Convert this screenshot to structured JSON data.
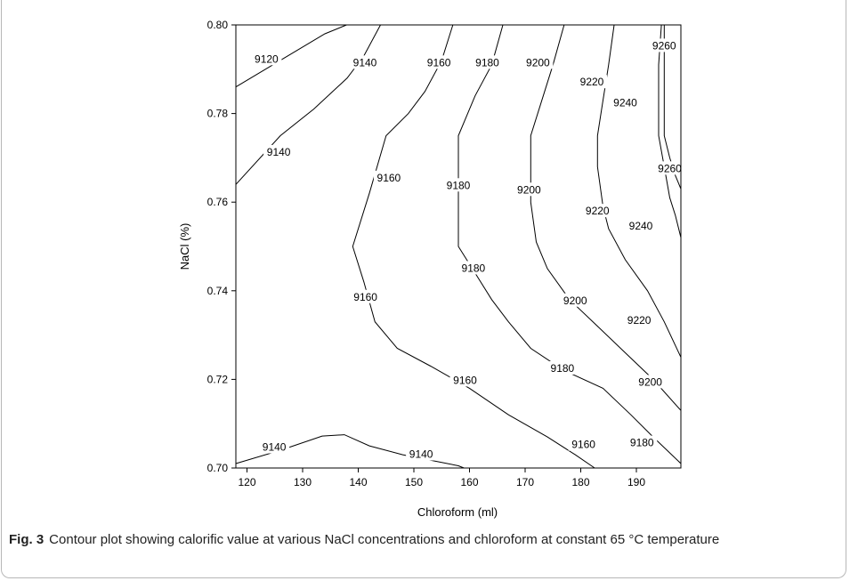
{
  "caption": {
    "label": "Fig. 3",
    "text": "Contour plot showing calorific value at various NaCl concentrations and chloroform at constant 65 °C temperature"
  },
  "chart_data": {
    "type": "contour",
    "xlabel": "Chloroform (ml)",
    "ylabel": "NaCl (%)",
    "xlim": [
      118,
      198
    ],
    "ylim": [
      0.7,
      0.8
    ],
    "x_ticks": [
      120,
      130,
      140,
      150,
      160,
      170,
      180,
      190
    ],
    "y_ticks": [
      0.7,
      0.72,
      0.74,
      0.76,
      0.78,
      0.8
    ],
    "y_tick_labels": [
      "0.70",
      "0.72",
      "0.74",
      "0.76",
      "0.78",
      "0.80"
    ],
    "contours": [
      {
        "level": 9120,
        "lines": [
          [
            [
              118,
              0.786
            ],
            [
              126,
              0.792
            ],
            [
              134,
              0.798
            ],
            [
              137.9,
              0.8
            ]
          ]
        ],
        "labels": [
          {
            "x": 123.5,
            "y": 0.7923,
            "text": "9120"
          }
        ]
      },
      {
        "level": 9140,
        "lines": [
          [
            [
              118,
              0.764
            ],
            [
              126,
              0.775
            ],
            [
              132,
              0.781
            ],
            [
              138,
              0.788
            ],
            [
              141,
              0.793
            ],
            [
              144,
              0.8
            ]
          ],
          [
            [
              118,
              0.701
            ],
            [
              126,
              0.704
            ],
            [
              133.5,
              0.7072
            ],
            [
              137.5,
              0.7075
            ],
            [
              142,
              0.705
            ],
            [
              148,
              0.703
            ],
            [
              154,
              0.7015
            ],
            [
              158,
              0.7005
            ],
            [
              159,
              0.7
            ]
          ]
        ],
        "labels": [
          {
            "x": 141.2,
            "y": 0.7915,
            "text": "9140"
          },
          {
            "x": 125.7,
            "y": 0.7713,
            "text": "9140"
          },
          {
            "x": 124.9,
            "y": 0.7047,
            "text": "9140"
          },
          {
            "x": 151.3,
            "y": 0.7031,
            "text": "9140"
          }
        ]
      },
      {
        "level": 9160,
        "lines": [
          [
            [
              157,
              0.8
            ],
            [
              155,
              0.792
            ],
            [
              152,
              0.785
            ],
            [
              149,
              0.78
            ],
            [
              145,
              0.775
            ],
            [
              142,
              0.762
            ],
            [
              139,
              0.75
            ],
            [
              141,
              0.742
            ],
            [
              143,
              0.733
            ],
            [
              147,
              0.727
            ],
            [
              153,
              0.723
            ],
            [
              160,
              0.718
            ],
            [
              167,
              0.712
            ],
            [
              174,
              0.707
            ],
            [
              179,
              0.703
            ],
            [
              182.5,
              0.7
            ]
          ]
        ],
        "labels": [
          {
            "x": 154.5,
            "y": 0.7915,
            "text": "9160"
          },
          {
            "x": 145.5,
            "y": 0.7655,
            "text": "9160"
          },
          {
            "x": 141.3,
            "y": 0.7386,
            "text": "9160"
          },
          {
            "x": 159.2,
            "y": 0.7198,
            "text": "9160"
          },
          {
            "x": 180.5,
            "y": 0.7053,
            "text": "9160"
          }
        ]
      },
      {
        "level": 9180,
        "lines": [
          [
            [
              166,
              0.8
            ],
            [
              164,
              0.791
            ],
            [
              161,
              0.784
            ],
            [
              158,
              0.775
            ],
            [
              158,
              0.75
            ],
            [
              161,
              0.744
            ],
            [
              164,
              0.738
            ],
            [
              167,
              0.733
            ],
            [
              171,
              0.727
            ],
            [
              177,
              0.722
            ],
            [
              184,
              0.718
            ],
            [
              189,
              0.712
            ],
            [
              193,
              0.707
            ],
            [
              198,
              0.701
            ]
          ]
        ],
        "labels": [
          {
            "x": 163.2,
            "y": 0.7915,
            "text": "9180"
          },
          {
            "x": 158.0,
            "y": 0.7638,
            "text": "9180"
          },
          {
            "x": 160.7,
            "y": 0.7451,
            "text": "9180"
          },
          {
            "x": 176.7,
            "y": 0.7225,
            "text": "9180"
          },
          {
            "x": 191.0,
            "y": 0.7057,
            "text": "9180"
          }
        ]
      },
      {
        "level": 9200,
        "lines": [
          [
            [
              177,
              0.8
            ],
            [
              175,
              0.791
            ],
            [
              173,
              0.783
            ],
            [
              171,
              0.775
            ],
            [
              171,
              0.76
            ],
            [
              172,
              0.751
            ],
            [
              174,
              0.745
            ],
            [
              178,
              0.738
            ],
            [
              183,
              0.732
            ],
            [
              188,
              0.726
            ],
            [
              193,
              0.72
            ],
            [
              198,
              0.713
            ]
          ]
        ],
        "labels": [
          {
            "x": 172.3,
            "y": 0.7915,
            "text": "9200"
          },
          {
            "x": 170.7,
            "y": 0.7628,
            "text": "9200"
          },
          {
            "x": 179.0,
            "y": 0.7378,
            "text": "9200"
          },
          {
            "x": 192.5,
            "y": 0.7194,
            "text": "9200"
          }
        ]
      },
      {
        "level": 9220,
        "lines": [
          [
            [
              186,
              0.8
            ],
            [
              185,
              0.791
            ],
            [
              184,
              0.783
            ],
            [
              183,
              0.775
            ],
            [
              183,
              0.768
            ],
            [
              184,
              0.759
            ],
            [
              185,
              0.754
            ],
            [
              188,
              0.747
            ],
            [
              192,
              0.74
            ],
            [
              195,
              0.733
            ],
            [
              198,
              0.725
            ]
          ]
        ],
        "labels": [
          {
            "x": 182.0,
            "y": 0.7871,
            "text": "9220"
          },
          {
            "x": 183.0,
            "y": 0.758,
            "text": "9220"
          },
          {
            "x": 190.5,
            "y": 0.7333,
            "text": "9220"
          }
        ]
      },
      {
        "level": 9240,
        "lines": [
          [
            [
              194.5,
              0.8
            ],
            [
              194,
              0.791
            ],
            [
              194,
              0.775
            ],
            [
              195,
              0.768
            ],
            [
              196,
              0.761
            ],
            [
              197,
              0.757
            ],
            [
              198,
              0.752
            ]
          ]
        ],
        "labels": [
          {
            "x": 188.0,
            "y": 0.7824,
            "text": "9240"
          },
          {
            "x": 190.8,
            "y": 0.7546,
            "text": "9240"
          }
        ]
      },
      {
        "level": 9260,
        "lines": [
          [
            [
              195,
              0.8
            ],
            [
              195,
              0.791
            ],
            [
              195,
              0.775
            ],
            [
              196,
              0.77
            ],
            [
              197,
              0.766
            ],
            [
              198,
              0.763
            ]
          ]
        ],
        "labels": [
          {
            "x": 195.0,
            "y": 0.7953,
            "text": "9260"
          },
          {
            "x": 196.0,
            "y": 0.7676,
            "text": "9260"
          }
        ]
      }
    ]
  }
}
